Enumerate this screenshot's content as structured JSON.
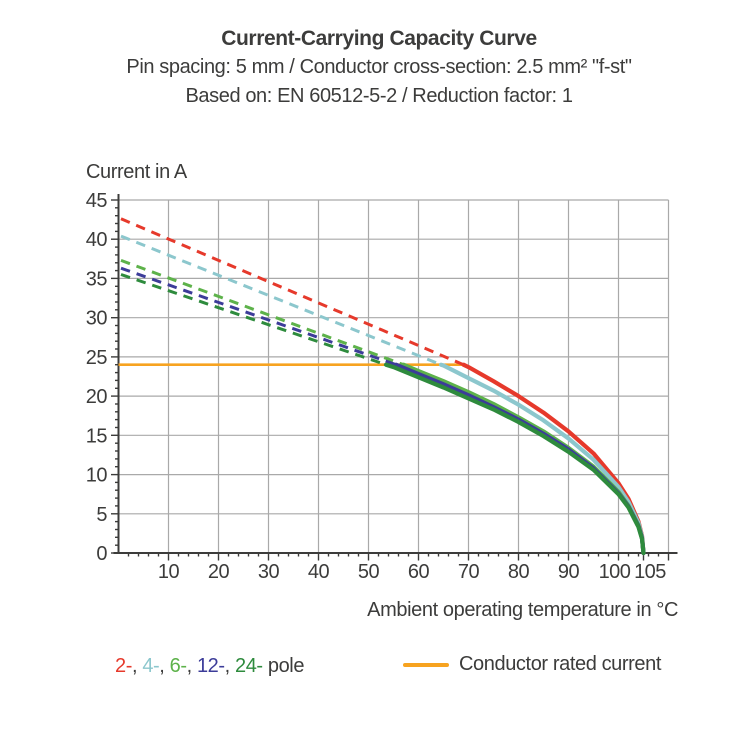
{
  "header": {
    "title": "Current-Carrying Capacity Curve",
    "subtitle_spec": "Pin spacing: 5 mm / Conductor cross-section: 2.5 mm² \"f-st\"",
    "subtitle_standard": "Based on: EN 60512-5-2 / Reduction factor: 1"
  },
  "chart_data": {
    "type": "line",
    "title": "Current-Carrying Capacity Curve",
    "xlabel": "Ambient operating temperature in °C",
    "ylabel": "Current in A",
    "xlim": [
      0,
      110
    ],
    "ylim": [
      0,
      45
    ],
    "x_ticks_labeled": [
      10,
      20,
      30,
      40,
      50,
      60,
      70,
      80,
      90,
      100,
      105
    ],
    "x_gridlines": [
      10,
      20,
      30,
      40,
      50,
      60,
      70,
      80,
      90,
      100,
      110
    ],
    "x_minor_tick_step": 2,
    "y_ticks_labeled": [
      0,
      5,
      10,
      15,
      20,
      25,
      30,
      35,
      40,
      45
    ],
    "y_minor_tick_step": 1,
    "grid": true,
    "colors": {
      "grid": "#a9a9a9",
      "axis": "#3c3c3b",
      "text": "#3c3c3b"
    },
    "rated_current": {
      "label": "Conductor rated current",
      "value_A": 24,
      "x_range_C": [
        0,
        69
      ],
      "color": "#f7a320"
    },
    "curve_end_C": 105,
    "series": [
      {
        "name": "2-pole",
        "legend_label": "2-",
        "color": "#e6392b",
        "current_at_0C_A": 42.6,
        "meets_rated_current_at_C": 69,
        "dashed_segment": [
          [
            0.5,
            42.6
          ],
          [
            69,
            24
          ]
        ],
        "solid_points": [
          [
            69,
            24
          ],
          [
            70,
            23.7
          ],
          [
            75,
            21.9
          ],
          [
            80,
            20.0
          ],
          [
            85,
            17.9
          ],
          [
            90,
            15.5
          ],
          [
            95,
            12.7
          ],
          [
            100,
            8.9
          ],
          [
            102,
            6.9
          ],
          [
            104,
            4.0
          ],
          [
            104.7,
            2.2
          ],
          [
            105,
            0
          ]
        ]
      },
      {
        "name": "4-pole",
        "legend_label": "4-",
        "color": "#8cc7cd",
        "current_at_0C_A": 40.4,
        "meets_rated_current_at_C": 64.5,
        "dashed_segment": [
          [
            0.5,
            40.4
          ],
          [
            64.5,
            24
          ]
        ],
        "solid_points": [
          [
            64.5,
            24
          ],
          [
            65,
            23.9
          ],
          [
            70,
            22.3
          ],
          [
            75,
            20.7
          ],
          [
            80,
            18.9
          ],
          [
            85,
            16.9
          ],
          [
            90,
            14.6
          ],
          [
            95,
            11.9
          ],
          [
            100,
            8.4
          ],
          [
            102,
            6.5
          ],
          [
            104,
            3.8
          ],
          [
            104.7,
            2.1
          ],
          [
            105,
            0
          ]
        ]
      },
      {
        "name": "6-pole",
        "legend_label": "6-",
        "color": "#5db24a",
        "current_at_0C_A": 37.3,
        "meets_rated_current_at_C": 57,
        "dashed_segment": [
          [
            0.5,
            37.3
          ],
          [
            57,
            24
          ]
        ],
        "solid_points": [
          [
            57,
            24
          ],
          [
            60,
            23.2
          ],
          [
            65,
            21.9
          ],
          [
            70,
            20.5
          ],
          [
            75,
            19.0
          ],
          [
            80,
            17.3
          ],
          [
            85,
            15.5
          ],
          [
            90,
            13.4
          ],
          [
            95,
            11.0
          ],
          [
            100,
            7.8
          ],
          [
            102,
            6.0
          ],
          [
            104,
            3.5
          ],
          [
            104.7,
            1.9
          ],
          [
            105,
            0
          ]
        ]
      },
      {
        "name": "12-pole",
        "legend_label": "12-",
        "color": "#3c3c99",
        "current_at_0C_A": 36.3,
        "meets_rated_current_at_C": 55.5,
        "dashed_segment": [
          [
            0.5,
            36.3
          ],
          [
            55.5,
            24
          ]
        ],
        "solid_points": [
          [
            55.5,
            24
          ],
          [
            60,
            22.8
          ],
          [
            65,
            21.5
          ],
          [
            70,
            20.1
          ],
          [
            75,
            18.6
          ],
          [
            80,
            17.0
          ],
          [
            85,
            15.2
          ],
          [
            90,
            13.2
          ],
          [
            95,
            10.8
          ],
          [
            100,
            7.6
          ],
          [
            102,
            5.9
          ],
          [
            104,
            3.4
          ],
          [
            104.7,
            1.9
          ],
          [
            105,
            0
          ]
        ]
      },
      {
        "name": "24-pole",
        "legend_label": "24-",
        "color": "#2e8b3d",
        "current_at_0C_A": 35.5,
        "meets_rated_current_at_C": 53.5,
        "dashed_segment": [
          [
            0.5,
            35.5
          ],
          [
            53.5,
            24
          ]
        ],
        "solid_points": [
          [
            53.5,
            24
          ],
          [
            55,
            23.7
          ],
          [
            60,
            22.4
          ],
          [
            65,
            21.1
          ],
          [
            70,
            19.7
          ],
          [
            75,
            18.3
          ],
          [
            80,
            16.7
          ],
          [
            85,
            14.9
          ],
          [
            90,
            12.9
          ],
          [
            95,
            10.6
          ],
          [
            100,
            7.5
          ],
          [
            102,
            5.8
          ],
          [
            104,
            3.3
          ],
          [
            104.7,
            1.8
          ],
          [
            105,
            0
          ]
        ]
      }
    ]
  },
  "legend": {
    "separator": ", ",
    "pole_suffix": " pole",
    "poles": [
      {
        "label": "2-"
      },
      {
        "label": "4-"
      },
      {
        "label": "6-"
      },
      {
        "label": "12-"
      },
      {
        "label": "24-"
      }
    ],
    "rated_label": "Conductor rated current"
  }
}
